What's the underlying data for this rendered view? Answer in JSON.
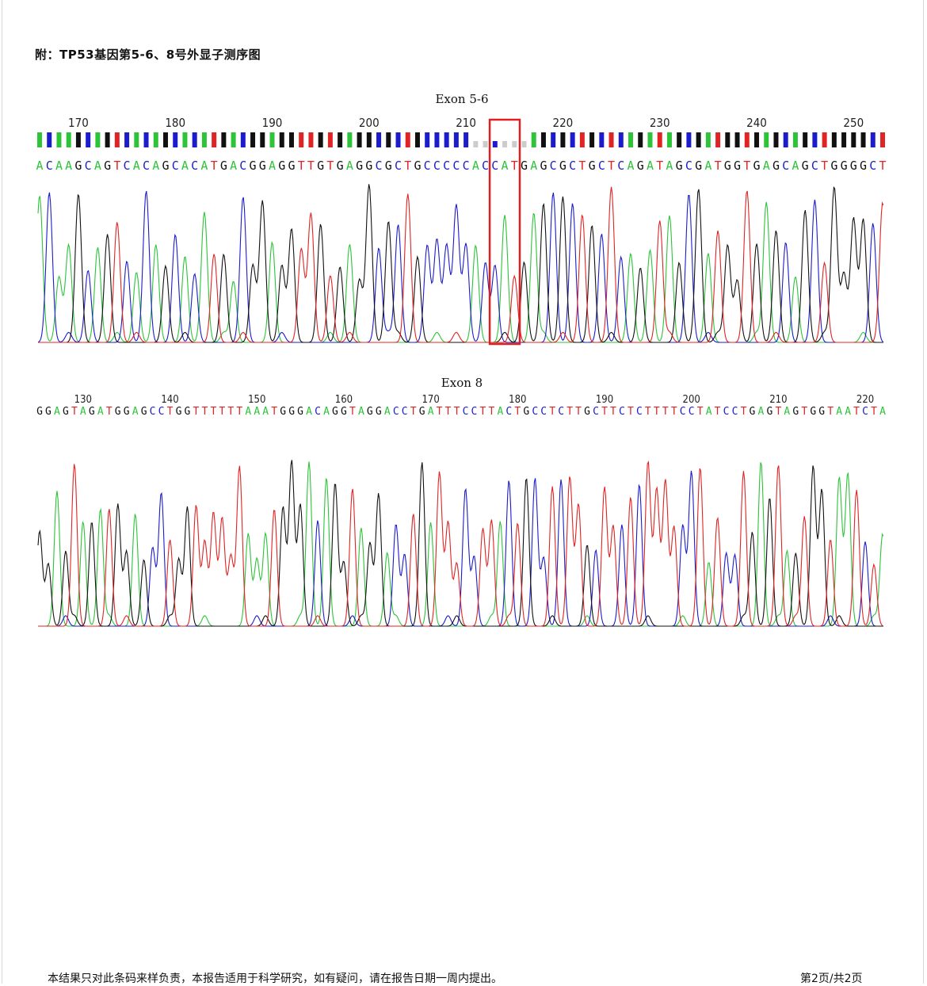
{
  "heading": "附：TP53基因第5-6、8号外显子测序图",
  "colors": {
    "A": "#2dc43a",
    "C": "#1c1ccc",
    "G": "#111111",
    "T": "#e02424",
    "N": "#cccccc",
    "box": "#e02020"
  },
  "panels": [
    {
      "title": "Exon 5-6",
      "sequence": "ACAAGCAGTCACAGCACATGACGGAGGTTGTGAGGCGCTGCCCCCACCATGAGCGCTGCTCAGATAGCGATGGTGAGCAGCTGGGGCT",
      "ticks": [
        "170",
        "180",
        "190",
        "200",
        "210",
        "220",
        "230",
        "240",
        "250"
      ],
      "tick_positions": [
        170,
        180,
        190,
        200,
        210,
        220,
        230,
        240,
        250
      ],
      "first_position": 166,
      "highlight": {
        "start": 213,
        "end": 215
      },
      "quality_bars": true
    },
    {
      "title": "Exon 8",
      "sequence": "GGAGTAGATGGAGCCTGGTTTTTTAAATGGGACAGGTAGGACCTGATTTCCTTACTGCCTCTTGCTTCTCTTTTCCTATCCTGAGTAGTGGTAATCTA",
      "ticks": [
        "130",
        "140",
        "150",
        "160",
        "170",
        "180",
        "190",
        "200",
        "210",
        "220"
      ],
      "tick_positions": [
        130,
        140,
        150,
        160,
        170,
        180,
        190,
        200,
        210,
        220
      ],
      "first_position": 125,
      "highlight": null,
      "quality_bars": false
    }
  ],
  "footer": {
    "note": "本结果只对此条码来样负责，本报告适用于科学研究，如有疑问，请在报告日期一周内提出。",
    "page": "第2页/共2页"
  }
}
